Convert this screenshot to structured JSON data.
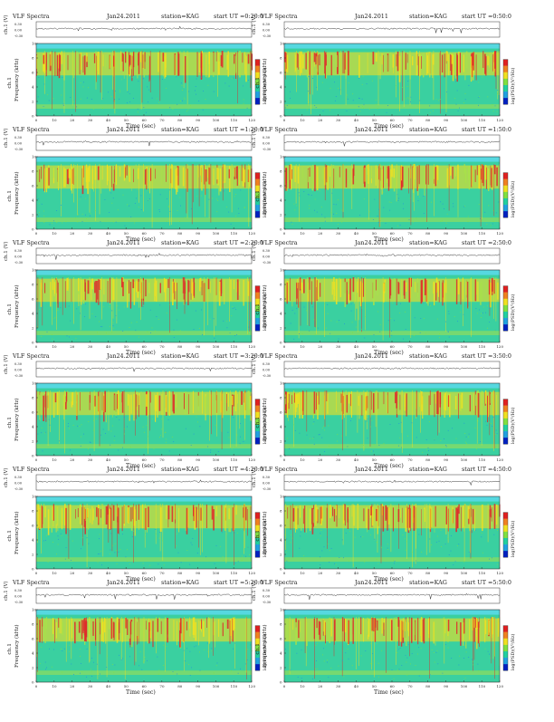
{
  "page": {
    "title_left": "VLF Spectra",
    "date": "Jan24.2011",
    "station": "station=KAG",
    "start_prefix": "start  UT  ="
  },
  "axes": {
    "xlabel": "Time  (sec)",
    "ylabel": "Frequency  (kHz)",
    "amp_label": "ch.1 (V)",
    "amp_ticks": [
      "0.30",
      "0.00",
      "-0.30"
    ],
    "chan_label": "ch.1",
    "colorbar_label": "log(PSD)(V²/Hz)",
    "x_ticks": [
      "0",
      "10",
      "20",
      "30",
      "40",
      "50",
      "60",
      "70",
      "80",
      "90",
      "100",
      "110",
      "120"
    ],
    "y_ticks": [
      "0",
      "2",
      "4",
      "6",
      "8",
      "10"
    ],
    "xlim": [
      0,
      120
    ],
    "ylim": [
      0,
      10
    ]
  },
  "colors": {
    "background_fill": "#3ad0a0",
    "band_top": "#56d8e0",
    "low_band": "#a8e04a",
    "active_band": "#f2e020",
    "intense": "#e0282a",
    "colorbar": [
      "#e02020",
      "#f08020",
      "#f0e020",
      "#80e040",
      "#20d0a0",
      "#20a0e0",
      "#0020c0"
    ]
  },
  "chart_data": [
    {
      "type": "heatmap",
      "start_ut": "0:20:0",
      "x": [
        0,
        120
      ],
      "y": [
        0,
        10
      ]
    },
    {
      "type": "heatmap",
      "start_ut": "0:50:0",
      "x": [
        0,
        120
      ],
      "y": [
        0,
        10
      ]
    },
    {
      "type": "heatmap",
      "start_ut": "1:20:0",
      "x": [
        0,
        120
      ],
      "y": [
        0,
        10
      ]
    },
    {
      "type": "heatmap",
      "start_ut": "1:50:0",
      "x": [
        0,
        120
      ],
      "y": [
        0,
        10
      ]
    },
    {
      "type": "heatmap",
      "start_ut": "2:20:0",
      "x": [
        0,
        120
      ],
      "y": [
        0,
        10
      ]
    },
    {
      "type": "heatmap",
      "start_ut": "2:50:0",
      "x": [
        0,
        120
      ],
      "y": [
        0,
        10
      ]
    },
    {
      "type": "heatmap",
      "start_ut": "3:20:0",
      "x": [
        0,
        120
      ],
      "y": [
        0,
        10
      ]
    },
    {
      "type": "heatmap",
      "start_ut": "3:50:0",
      "x": [
        0,
        120
      ],
      "y": [
        0,
        10
      ]
    },
    {
      "type": "heatmap",
      "start_ut": "4:20:0",
      "x": [
        0,
        120
      ],
      "y": [
        0,
        10
      ]
    },
    {
      "type": "heatmap",
      "start_ut": "4:50:0",
      "x": [
        0,
        120
      ],
      "y": [
        0,
        10
      ]
    },
    {
      "type": "heatmap",
      "start_ut": "5:20:0",
      "x": [
        0,
        120
      ],
      "y": [
        0,
        10
      ]
    },
    {
      "type": "heatmap",
      "start_ut": "5:50:0",
      "x": [
        0,
        120
      ],
      "y": [
        0,
        10
      ]
    }
  ]
}
